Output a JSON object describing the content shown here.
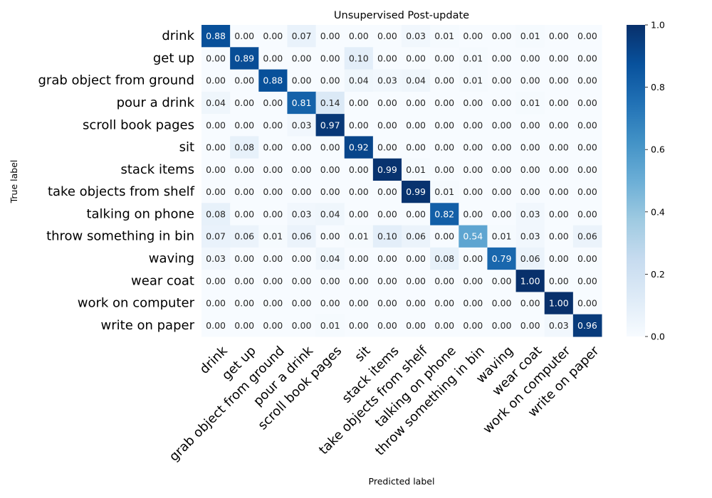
{
  "chart_data": {
    "type": "heatmap",
    "title": "Unsupervised Post-update",
    "xlabel": "Predicted label",
    "ylabel": "True label",
    "labels": [
      "drink",
      "get up",
      "grab object from ground",
      "pour a drink",
      "scroll book pages",
      "sit",
      "stack items",
      "take objects from shelf",
      "talking on phone",
      "throw something in bin",
      "waving",
      "wear coat",
      "work on computer",
      "write on paper"
    ],
    "matrix": [
      [
        0.88,
        0.0,
        0.0,
        0.07,
        0.0,
        0.0,
        0.0,
        0.03,
        0.01,
        0.0,
        0.0,
        0.01,
        0.0,
        0.0
      ],
      [
        0.0,
        0.89,
        0.0,
        0.0,
        0.0,
        0.1,
        0.0,
        0.0,
        0.0,
        0.01,
        0.0,
        0.0,
        0.0,
        0.0
      ],
      [
        0.0,
        0.0,
        0.88,
        0.0,
        0.0,
        0.04,
        0.03,
        0.04,
        0.0,
        0.01,
        0.0,
        0.0,
        0.0,
        0.0
      ],
      [
        0.04,
        0.0,
        0.0,
        0.81,
        0.14,
        0.0,
        0.0,
        0.0,
        0.0,
        0.0,
        0.0,
        0.01,
        0.0,
        0.0
      ],
      [
        0.0,
        0.0,
        0.0,
        0.03,
        0.97,
        0.0,
        0.0,
        0.0,
        0.0,
        0.0,
        0.0,
        0.0,
        0.0,
        0.0
      ],
      [
        0.0,
        0.08,
        0.0,
        0.0,
        0.0,
        0.92,
        0.0,
        0.0,
        0.0,
        0.0,
        0.0,
        0.0,
        0.0,
        0.0
      ],
      [
        0.0,
        0.0,
        0.0,
        0.0,
        0.0,
        0.0,
        0.99,
        0.01,
        0.0,
        0.0,
        0.0,
        0.0,
        0.0,
        0.0
      ],
      [
        0.0,
        0.0,
        0.0,
        0.0,
        0.0,
        0.0,
        0.0,
        0.99,
        0.01,
        0.0,
        0.0,
        0.0,
        0.0,
        0.0
      ],
      [
        0.08,
        0.0,
        0.0,
        0.03,
        0.04,
        0.0,
        0.0,
        0.0,
        0.82,
        0.0,
        0.0,
        0.03,
        0.0,
        0.0
      ],
      [
        0.07,
        0.06,
        0.01,
        0.06,
        0.0,
        0.01,
        0.1,
        0.06,
        0.0,
        0.54,
        0.01,
        0.03,
        0.0,
        0.06
      ],
      [
        0.03,
        0.0,
        0.0,
        0.0,
        0.04,
        0.0,
        0.0,
        0.0,
        0.08,
        0.0,
        0.79,
        0.06,
        0.0,
        0.0
      ],
      [
        0.0,
        0.0,
        0.0,
        0.0,
        0.0,
        0.0,
        0.0,
        0.0,
        0.0,
        0.0,
        0.0,
        1.0,
        0.0,
        0.0
      ],
      [
        0.0,
        0.0,
        0.0,
        0.0,
        0.0,
        0.0,
        0.0,
        0.0,
        0.0,
        0.0,
        0.0,
        0.0,
        1.0,
        0.0
      ],
      [
        0.0,
        0.0,
        0.0,
        0.0,
        0.01,
        0.0,
        0.0,
        0.0,
        0.0,
        0.0,
        0.0,
        0.0,
        0.03,
        0.96
      ]
    ],
    "vmin": 0.0,
    "vmax": 1.0,
    "colormap": "Blues",
    "colorbar_ticks": [
      "0.0",
      "0.2",
      "0.4",
      "0.6",
      "0.8",
      "1.0"
    ],
    "legend_position": "right"
  }
}
